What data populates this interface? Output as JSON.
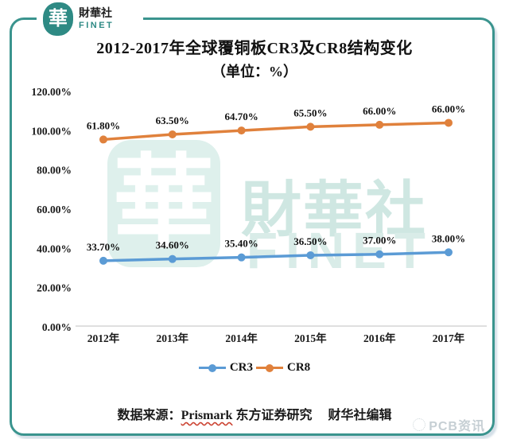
{
  "logo": {
    "seal_char": "華",
    "name": "財華社",
    "sub": "FINET"
  },
  "title": {
    "line1": "2012-2017年全球覆铜板CR3及CR8结构变化",
    "line2": "（单位：%）"
  },
  "watermark": {
    "seal_char": "華",
    "name": "財華社",
    "sub": "FINET"
  },
  "chart_data": {
    "type": "line",
    "stacked": true,
    "title": "2012-2017年全球覆铜板CR3及CR8结构变化（单位：%）",
    "categories": [
      "2012年",
      "2013年",
      "2014年",
      "2015年",
      "2016年",
      "2017年"
    ],
    "series": [
      {
        "name": "CR3",
        "color": "#5b9bd5",
        "values": [
          33.7,
          34.6,
          35.4,
          36.5,
          37.0,
          38.0
        ],
        "labels": [
          "33.70%",
          "34.60%",
          "35.40%",
          "36.50%",
          "37.00%",
          "38.00%"
        ]
      },
      {
        "name": "CR8",
        "color": "#e0813c",
        "values": [
          61.8,
          63.5,
          64.7,
          65.5,
          66.0,
          66.0
        ],
        "labels": [
          "61.80%",
          "63.50%",
          "64.70%",
          "65.50%",
          "66.00%",
          "66.00%"
        ]
      }
    ],
    "ylim": [
      0,
      120
    ],
    "yticks": [
      {
        "value": 120,
        "label": "120.00%"
      },
      {
        "value": 100,
        "label": "100.00%"
      },
      {
        "value": 80,
        "label": "80.00%"
      },
      {
        "value": 60,
        "label": "60.00%"
      },
      {
        "value": 40,
        "label": "40.00%"
      },
      {
        "value": 20,
        "label": "20.00%"
      },
      {
        "value": 0,
        "label": "0.00%"
      }
    ],
    "grid": false,
    "legend_position": "bottom"
  },
  "legend": [
    {
      "label": "CR3",
      "color": "#5b9bd5"
    },
    {
      "label": "CR8",
      "color": "#e0813c"
    }
  ],
  "source": {
    "prefix": "数据来源：",
    "source_name": "Prismark",
    "suffix": " 东方证券研究　 财华社编辑"
  },
  "badge": {
    "text": "PCB资讯"
  },
  "colors": {
    "frame_teal": "#3a948e",
    "axis_line": "#cccccc",
    "cr3_blue": "#5b9bd5",
    "cr8_orange": "#e0813c"
  }
}
